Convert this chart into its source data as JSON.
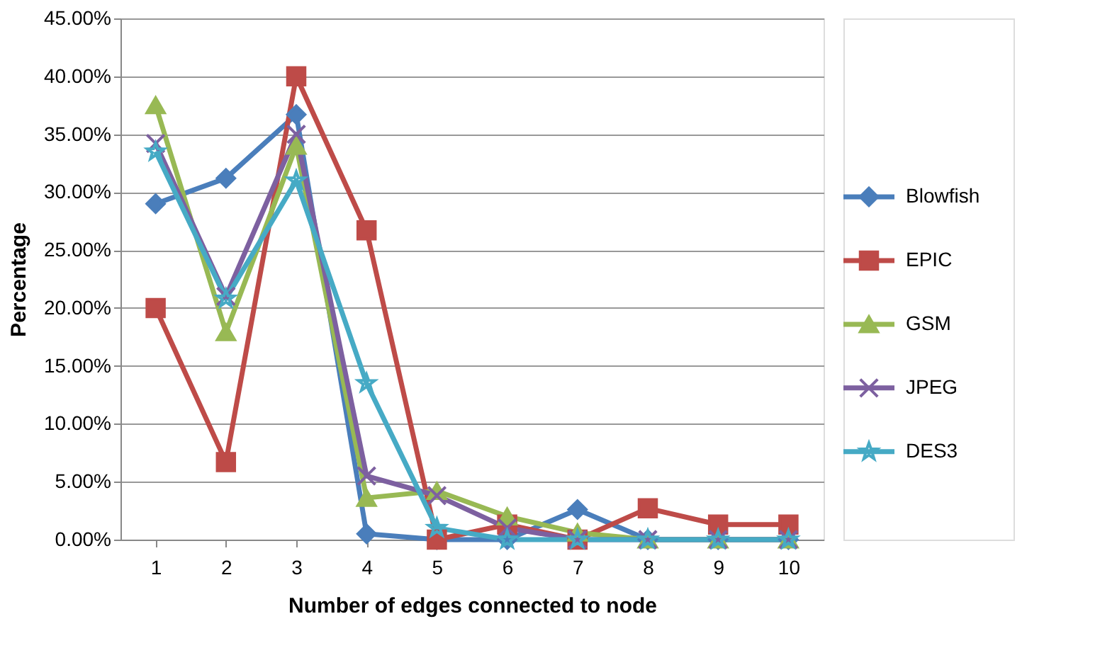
{
  "chart_data": {
    "type": "line",
    "xlabel": "Number of edges connected to node",
    "ylabel": "Percentage",
    "categories": [
      "1",
      "2",
      "3",
      "4",
      "5",
      "6",
      "7",
      "8",
      "9",
      "10"
    ],
    "series": [
      {
        "name": "Blowfish",
        "color": "#4a7ebb",
        "marker": "diamond",
        "values": [
          29.0,
          31.2,
          36.7,
          0.5,
          0,
          0,
          2.6,
          0,
          0,
          0
        ]
      },
      {
        "name": "EPIC",
        "color": "#be4b48",
        "marker": "square",
        "values": [
          20.0,
          6.7,
          40.0,
          26.7,
          0,
          1.3,
          0,
          2.7,
          1.3,
          1.3
        ]
      },
      {
        "name": "GSM",
        "color": "#98b954",
        "marker": "triangle",
        "values": [
          37.5,
          17.9,
          34.0,
          3.6,
          4.2,
          2.0,
          0.6,
          0,
          0,
          0
        ]
      },
      {
        "name": "JPEG",
        "color": "#7d60a0",
        "marker": "cross",
        "values": [
          34.2,
          21.0,
          35.0,
          5.5,
          3.8,
          1.0,
          0,
          0,
          0,
          0
        ]
      },
      {
        "name": "DES3",
        "color": "#46aac5",
        "marker": "star",
        "values": [
          33.5,
          20.8,
          31.0,
          13.5,
          1.0,
          0,
          0,
          0,
          0,
          0
        ]
      }
    ],
    "ylim": [
      0,
      45
    ],
    "yticks": [
      {
        "value": 0,
        "label": "0.00%"
      },
      {
        "value": 5,
        "label": "5.00%"
      },
      {
        "value": 10,
        "label": "10.00%"
      },
      {
        "value": 15,
        "label": "15.00%"
      },
      {
        "value": 20,
        "label": "20.00%"
      },
      {
        "value": 25,
        "label": "25.00%"
      },
      {
        "value": 30,
        "label": "30.00%"
      },
      {
        "value": 35,
        "label": "35.00%"
      },
      {
        "value": 40,
        "label": "40.00%"
      },
      {
        "value": 45,
        "label": "45.00%"
      }
    ],
    "grid": "y",
    "legend": "right",
    "line_style": "solid"
  }
}
